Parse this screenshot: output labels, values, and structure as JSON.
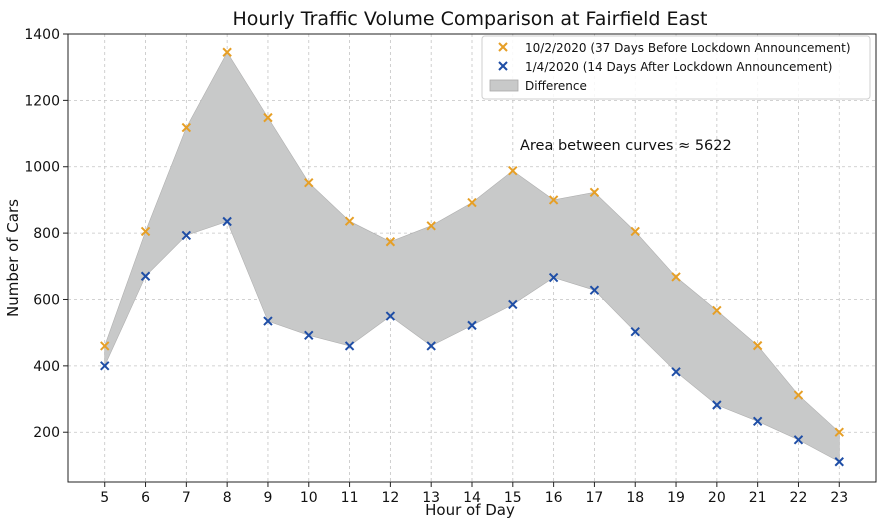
{
  "chart_data": {
    "type": "scatter",
    "title": "Hourly Traffic Volume Comparison at Fairfield East",
    "xlabel": "Hour of Day",
    "ylabel": "Number of Cars",
    "x": [
      5,
      6,
      7,
      8,
      9,
      10,
      11,
      12,
      13,
      14,
      15,
      16,
      17,
      18,
      19,
      20,
      21,
      22,
      23
    ],
    "xlim": [
      4.1,
      23.9
    ],
    "ylim": [
      50,
      1400
    ],
    "yticks": [
      200,
      400,
      600,
      800,
      1000,
      1200,
      1400
    ],
    "grid": true,
    "legend_position": "top-right",
    "series": [
      {
        "name": "10/2/2020 (37 Days Before Lockdown Announcement)",
        "marker": "x",
        "color": "#e69f26",
        "values": [
          460,
          805,
          1118,
          1345,
          1148,
          952,
          836,
          774,
          822,
          892,
          988,
          900,
          923,
          805,
          668,
          567,
          461,
          312,
          200
        ]
      },
      {
        "name": "1/4/2020 (14 Days After Lockdown Announcement)",
        "marker": "x",
        "color": "#1f4ea6",
        "values": [
          400,
          670,
          793,
          835,
          535,
          492,
          460,
          550,
          460,
          522,
          585,
          666,
          628,
          503,
          382,
          282,
          233,
          177,
          111
        ]
      }
    ],
    "fill_between": {
      "name": "Difference",
      "color": "#c8c9c9"
    },
    "annotation": "Area between curves ≈ 5622"
  }
}
